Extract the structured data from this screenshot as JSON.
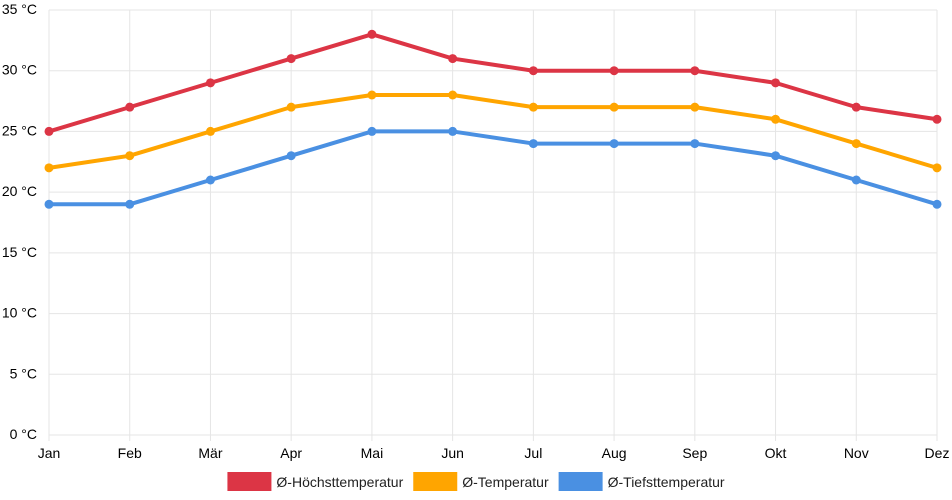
{
  "chart_data": {
    "type": "line",
    "title": "",
    "xlabel": "",
    "ylabel": "",
    "categories": [
      "Jan",
      "Feb",
      "Mär",
      "Apr",
      "Mai",
      "Jun",
      "Jul",
      "Aug",
      "Sep",
      "Okt",
      "Nov",
      "Dez"
    ],
    "ylim": [
      0,
      35
    ],
    "y_ticks": [
      0,
      5,
      10,
      15,
      20,
      25,
      30,
      35
    ],
    "y_unit": "°C",
    "grid": true,
    "legend_position": "bottom",
    "series": [
      {
        "name": "Ø-Höchsttemperatur",
        "color": "#dc3545",
        "values": [
          25,
          27,
          29,
          31,
          33,
          31,
          30,
          30,
          30,
          29,
          27,
          26
        ]
      },
      {
        "name": "Ø-Temperatur",
        "color": "#ffa500",
        "values": [
          22,
          23,
          25,
          27,
          28,
          28,
          27,
          27,
          27,
          26,
          24,
          22
        ]
      },
      {
        "name": "Ø-Tiefsttemperatur",
        "color": "#4a90e2",
        "values": [
          19,
          19,
          21,
          23,
          25,
          25,
          24,
          24,
          24,
          23,
          21,
          19
        ]
      }
    ]
  }
}
